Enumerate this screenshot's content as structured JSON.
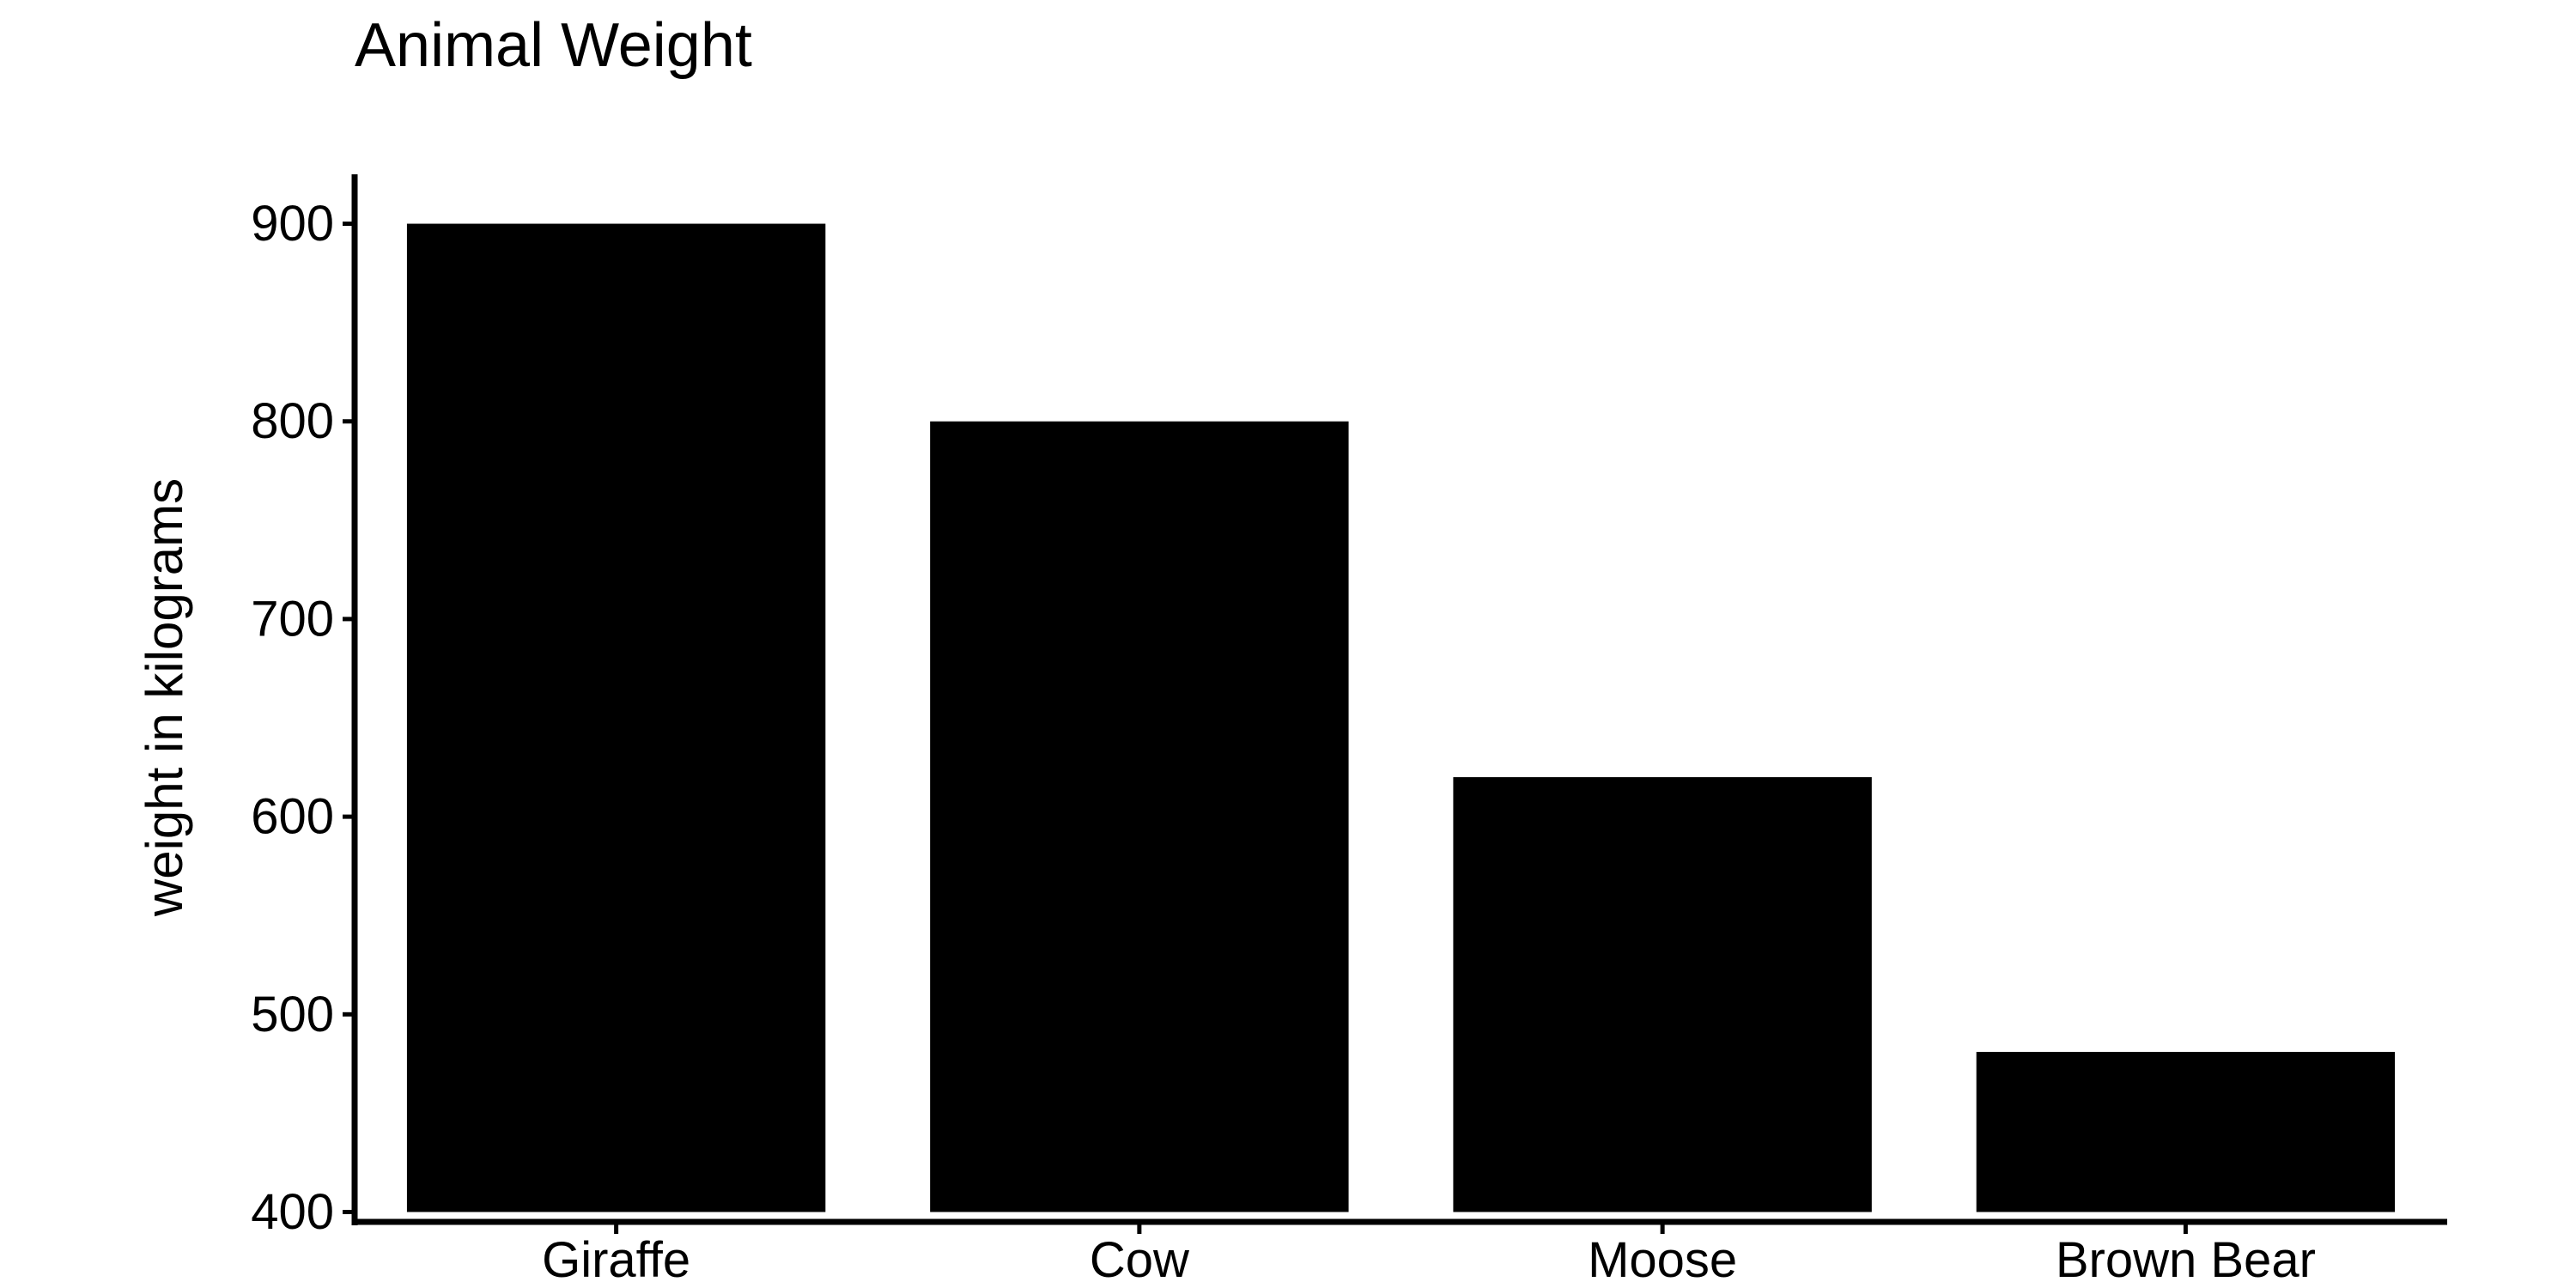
{
  "chart_data": {
    "type": "bar",
    "title": "Animal Weight",
    "xlabel": "",
    "ylabel": "weight in kilograms",
    "categories": [
      "Giraffe",
      "Cow",
      "Moose",
      "Brown Bear"
    ],
    "values": [
      900,
      800,
      620,
      481
    ],
    "baseline": 400,
    "ylim": [
      395,
      925
    ],
    "yticks": [
      "400",
      "500",
      "600",
      "700",
      "800",
      "900"
    ],
    "grid": false,
    "legend": "none",
    "colors": {
      "bar": "#000000",
      "axis": "#000000",
      "background": "#ffffff"
    }
  }
}
